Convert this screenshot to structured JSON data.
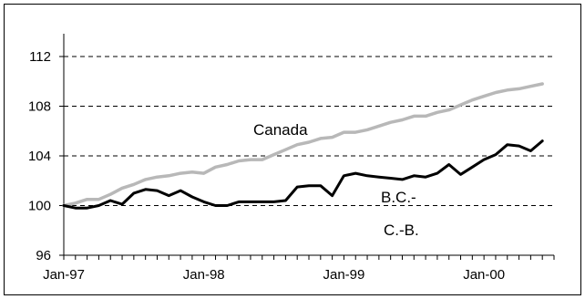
{
  "chart_data": {
    "type": "line",
    "title": "",
    "xlabel": "",
    "ylabel": "",
    "ylim": [
      96,
      112
    ],
    "yticks": [
      96,
      100,
      104,
      108,
      112
    ],
    "x": [
      "Jan-97",
      "Feb-97",
      "Mar-97",
      "Apr-97",
      "May-97",
      "Jun-97",
      "Jul-97",
      "Aug-97",
      "Sep-97",
      "Oct-97",
      "Nov-97",
      "Dec-97",
      "Jan-98",
      "Feb-98",
      "Mar-98",
      "Apr-98",
      "May-98",
      "Jun-98",
      "Jul-98",
      "Aug-98",
      "Sep-98",
      "Oct-98",
      "Nov-98",
      "Dec-98",
      "Jan-99",
      "Feb-99",
      "Mar-99",
      "Apr-99",
      "May-99",
      "Jun-99",
      "Jul-99",
      "Aug-99",
      "Sep-99",
      "Oct-99",
      "Nov-99",
      "Dec-99",
      "Jan-00",
      "Feb-00",
      "Mar-00",
      "Apr-00",
      "May-00",
      "Jun-00"
    ],
    "xtick_labels": [
      "Jan-97",
      "Jan-98",
      "Jan-99",
      "Jan-00"
    ],
    "grid": "horizontal-dashed",
    "series": [
      {
        "name": "Canada",
        "color": "#b8b8b8",
        "values": [
          100.0,
          100.2,
          100.5,
          100.5,
          100.9,
          101.4,
          101.7,
          102.1,
          102.3,
          102.4,
          102.6,
          102.7,
          102.6,
          103.1,
          103.3,
          103.6,
          103.7,
          103.7,
          104.1,
          104.5,
          104.9,
          105.1,
          105.4,
          105.5,
          105.9,
          105.9,
          106.1,
          106.4,
          106.7,
          106.9,
          107.2,
          107.2,
          107.5,
          107.7,
          108.1,
          108.5,
          108.8,
          109.1,
          109.3,
          109.4,
          109.6,
          109.8
        ]
      },
      {
        "name": "B.C.- C.-B.",
        "name_lines": [
          "B.C.-",
          "C.-B."
        ],
        "color": "#000000",
        "values": [
          100.0,
          99.8,
          99.8,
          100.0,
          100.4,
          100.1,
          101.0,
          101.3,
          101.2,
          100.8,
          101.2,
          100.7,
          100.3,
          100.0,
          100.0,
          100.3,
          100.3,
          100.3,
          100.3,
          100.4,
          101.5,
          101.6,
          101.6,
          100.8,
          102.4,
          102.6,
          102.4,
          102.3,
          102.2,
          102.1,
          102.4,
          102.3,
          102.6,
          103.3,
          102.5,
          103.1,
          103.7,
          104.1,
          104.9,
          104.8,
          104.4,
          105.2
        ]
      }
    ]
  }
}
